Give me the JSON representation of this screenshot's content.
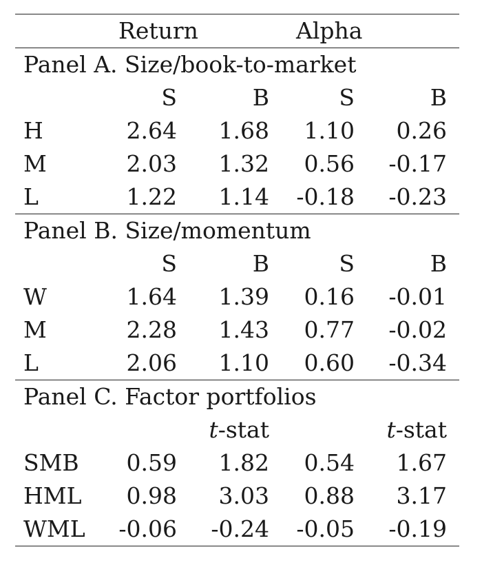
{
  "header": {
    "return": "Return",
    "alpha": "Alpha"
  },
  "panels": [
    {
      "title": "Panel A. Size/book-to-market",
      "subheader": [
        "",
        "S",
        "B",
        "S",
        "B"
      ],
      "rows": [
        {
          "label": "H",
          "values": [
            "2.64",
            "1.68",
            "1.10",
            "0.26"
          ]
        },
        {
          "label": "M",
          "values": [
            "2.03",
            "1.32",
            "0.56",
            "-0.17"
          ]
        },
        {
          "label": "L",
          "values": [
            "1.22",
            "1.14",
            "-0.18",
            "-0.23"
          ]
        }
      ]
    },
    {
      "title": "Panel B. Size/momentum",
      "subheader": [
        "",
        "S",
        "B",
        "S",
        "B"
      ],
      "rows": [
        {
          "label": "W",
          "values": [
            "1.64",
            "1.39",
            "0.16",
            "-0.01"
          ]
        },
        {
          "label": "M",
          "values": [
            "2.28",
            "1.43",
            "0.77",
            "-0.02"
          ]
        },
        {
          "label": "L",
          "values": [
            "2.06",
            "1.10",
            "0.60",
            "-0.34"
          ]
        }
      ]
    },
    {
      "title": "Panel C. Factor portfolios",
      "subheader": [
        "",
        "",
        "t-stat",
        "",
        "t-stat"
      ],
      "rows": [
        {
          "label": "SMB",
          "values": [
            "0.59",
            "1.82",
            "0.54",
            "1.67"
          ]
        },
        {
          "label": "HML",
          "values": [
            "0.98",
            "3.03",
            "0.88",
            "3.17"
          ]
        },
        {
          "label": "WML",
          "values": [
            "-0.06",
            "-0.24",
            "-0.05",
            "-0.19"
          ]
        }
      ]
    }
  ]
}
